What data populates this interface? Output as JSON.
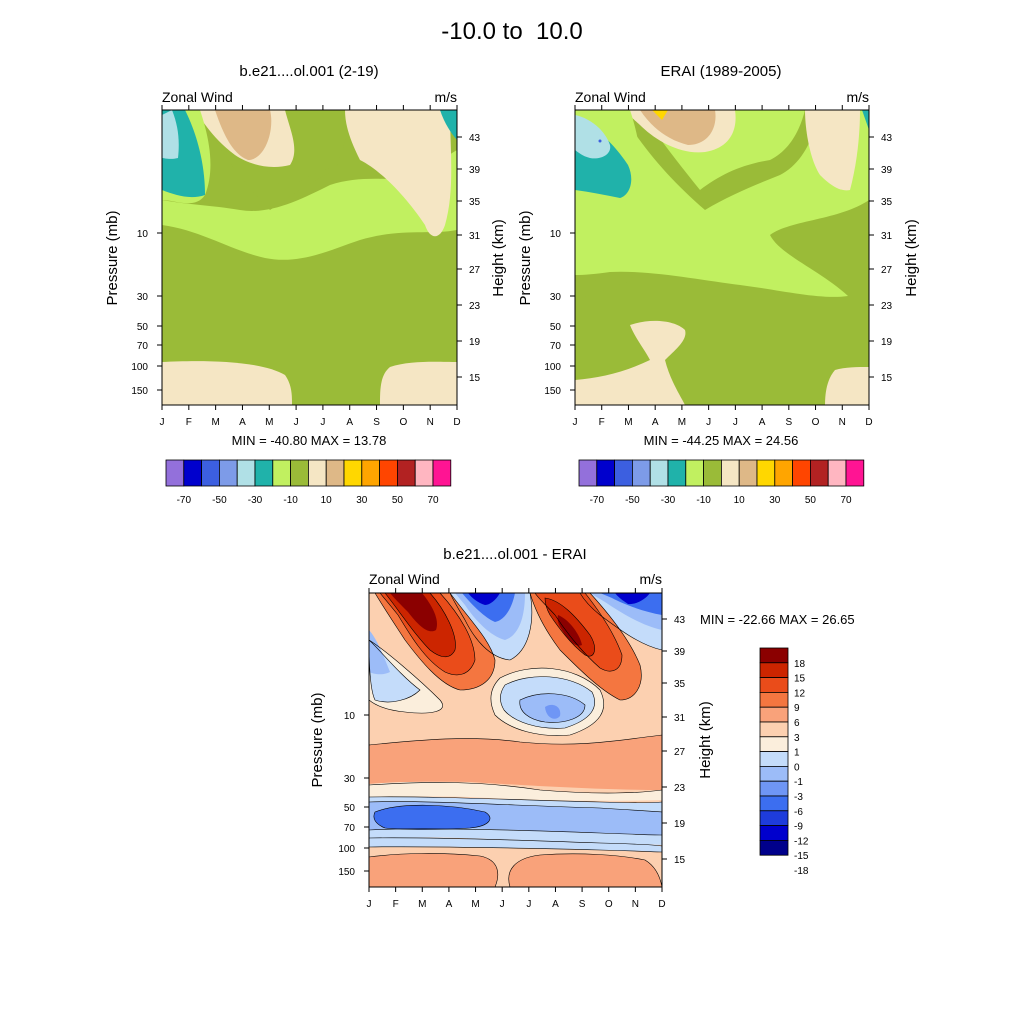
{
  "figure": {
    "title": "-10.0 to  10.0"
  },
  "colors": {
    "abs_palette": [
      "#9370db",
      "#0000cd",
      "#3c5fe0",
      "#7d9be8",
      "#b0e0e6",
      "#20b2aa",
      "#c1f060",
      "#9abb38",
      "#f5e6c4",
      "#deb887",
      "#ffd700",
      "#ffa500",
      "#ff4500",
      "#b22222",
      "#ffb6c1",
      "#ff1493"
    ],
    "diff_palette": [
      "#00008b",
      "#0000cd",
      "#1e3cdc",
      "#3c6ef0",
      "#6f96f5",
      "#9cbcf8",
      "#c4dcfa",
      "#fbeedc",
      "#fcd0b0",
      "#f9a27a",
      "#f47640",
      "#ea4c1a",
      "#cc2500",
      "#8b0000"
    ]
  },
  "chart_data": [
    {
      "type": "heatmap",
      "panel": "model",
      "title": "b.e21....ol.001 (2-19)",
      "left_label": "Zonal Wind",
      "right_label": "m/s",
      "ylabel": "Pressure (mb)",
      "ylabel_right": "Height (km)",
      "x_ticks": [
        "J",
        "F",
        "M",
        "A",
        "M",
        "J",
        "J",
        "A",
        "S",
        "O",
        "N",
        "D"
      ],
      "pressure_ticks": [
        "10",
        "30",
        "50",
        "70",
        "100",
        "150"
      ],
      "height_ticks": [
        "43",
        "39",
        "35",
        "31",
        "27",
        "23",
        "19",
        "15"
      ],
      "stats_text": "MIN = -40.80  MAX =  13.78",
      "colorbar_labels": [
        "-70",
        "-50",
        "-30",
        "-10",
        "10",
        "30",
        "50",
        "70"
      ],
      "min": -40.8,
      "max": 13.78
    },
    {
      "type": "heatmap",
      "panel": "obs",
      "title": "ERAI (1989-2005)",
      "left_label": "Zonal Wind",
      "right_label": "m/s",
      "ylabel": "Pressure (mb)",
      "ylabel_right": "Height (km)",
      "x_ticks": [
        "J",
        "F",
        "M",
        "A",
        "M",
        "J",
        "J",
        "A",
        "S",
        "O",
        "N",
        "D"
      ],
      "pressure_ticks": [
        "10",
        "30",
        "50",
        "70",
        "100",
        "150"
      ],
      "height_ticks": [
        "43",
        "39",
        "35",
        "31",
        "27",
        "23",
        "19",
        "15"
      ],
      "stats_text": "MIN = -44.25  MAX =  24.56",
      "colorbar_labels": [
        "-70",
        "-50",
        "-30",
        "-10",
        "10",
        "30",
        "50",
        "70"
      ],
      "min": -44.25,
      "max": 24.56
    },
    {
      "type": "heatmap",
      "panel": "difference",
      "title": "b.e21....ol.001 - ERAI",
      "left_label": "Zonal Wind",
      "right_label": "m/s",
      "ylabel": "Pressure (mb)",
      "ylabel_right": "Height (km)",
      "x_ticks": [
        "J",
        "F",
        "M",
        "A",
        "M",
        "J",
        "J",
        "A",
        "S",
        "O",
        "N",
        "D"
      ],
      "pressure_ticks": [
        "10",
        "30",
        "50",
        "70",
        "100",
        "150"
      ],
      "height_ticks": [
        "43",
        "39",
        "35",
        "31",
        "27",
        "23",
        "19",
        "15"
      ],
      "stats_text": "MIN = -22.66  MAX =  26.65",
      "colorbar_labels": [
        "18",
        "15",
        "12",
        "9",
        "6",
        "3",
        "1",
        "0",
        "-1",
        "-3",
        "-6",
        "-9",
        "-12",
        "-15",
        "-18"
      ],
      "min": -22.66,
      "max": 26.65
    }
  ]
}
